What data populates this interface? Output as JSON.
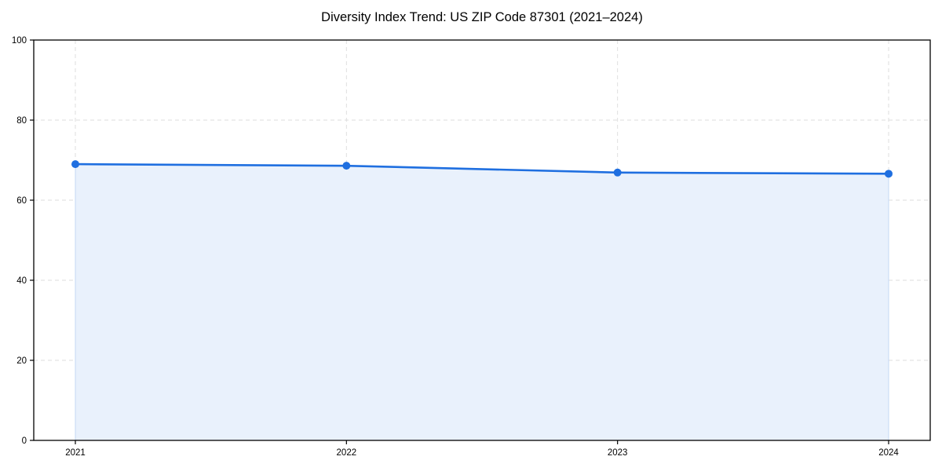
{
  "chart_data": {
    "type": "area",
    "title": "Diversity Index Trend: US ZIP Code 87301 (2021–2024)",
    "categories": [
      "2021",
      "2022",
      "2023",
      "2024"
    ],
    "values": [
      69.0,
      68.6,
      66.9,
      66.6
    ],
    "xlabel": "",
    "ylabel": "",
    "ylim": [
      0,
      100
    ],
    "yticks": [
      0,
      20,
      40,
      60,
      80,
      100
    ],
    "grid": true,
    "grid_style": "dashed",
    "legend": "none",
    "colors": {
      "line": "#1f6fe0",
      "marker": "#1f6fe0",
      "area_fill": "#e9f1fc",
      "area_edge": "#c3d8f5",
      "grid": "#dedede",
      "spine": "#000000",
      "text": "#000000",
      "background": "#ffffff"
    }
  }
}
